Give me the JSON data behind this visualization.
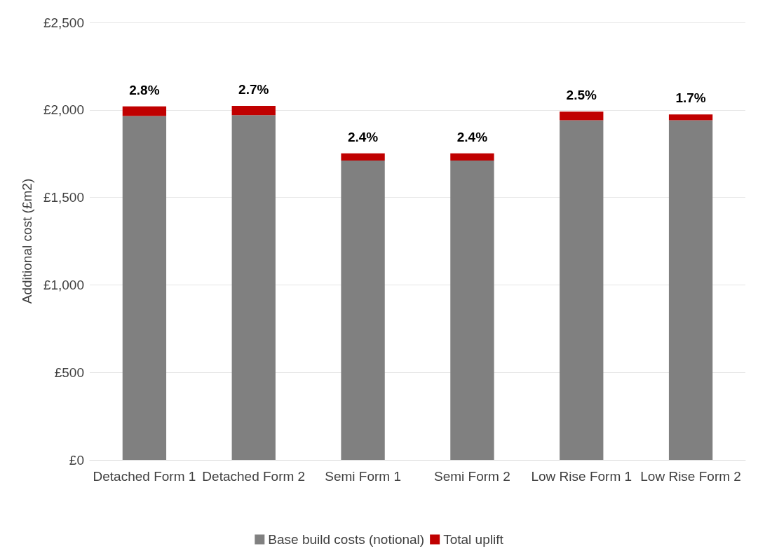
{
  "chart_data": {
    "type": "bar",
    "stacked": true,
    "ylabel": "Additional cost (£m2)",
    "categories": [
      "Detached Form 1",
      "Detached Form 2",
      "Semi Form 1",
      "Semi Form 2",
      "Low Rise Form 1",
      "Low Rise Form 2"
    ],
    "series": [
      {
        "name": "Base build costs (notional)",
        "color": "#808080",
        "values": [
          1965,
          1970,
          1711,
          1711,
          1941,
          1941
        ]
      },
      {
        "name": "Total uplift",
        "color": "#c00000",
        "values": [
          55,
          53,
          41,
          41,
          49,
          33
        ]
      }
    ],
    "annotations": [
      {
        "text": "2.8%",
        "x": "Detached Form 1",
        "y": 2020
      },
      {
        "text": "2.7%",
        "x": "Detached Form 2",
        "y": 2023
      },
      {
        "text": "2.4%",
        "x": "Semi Form 1",
        "y": 1752
      },
      {
        "text": "2.4%",
        "x": "Semi Form 2",
        "y": 1752
      },
      {
        "text": "2.5%",
        "x": "Low Rise Form 1",
        "y": 1990
      },
      {
        "text": "1.7%",
        "x": "Low Rise Form 2",
        "y": 1974
      }
    ],
    "ylim": [
      0,
      2500
    ],
    "yticks": [
      {
        "value": 0,
        "label": "£0"
      },
      {
        "value": 500,
        "label": "£500"
      },
      {
        "value": 1000,
        "label": "£1,000"
      },
      {
        "value": 1500,
        "label": "£1,500"
      },
      {
        "value": 2000,
        "label": "£2,000"
      },
      {
        "value": 2500,
        "label": "£2,500"
      }
    ],
    "grid": "y",
    "legend": "bottom"
  }
}
